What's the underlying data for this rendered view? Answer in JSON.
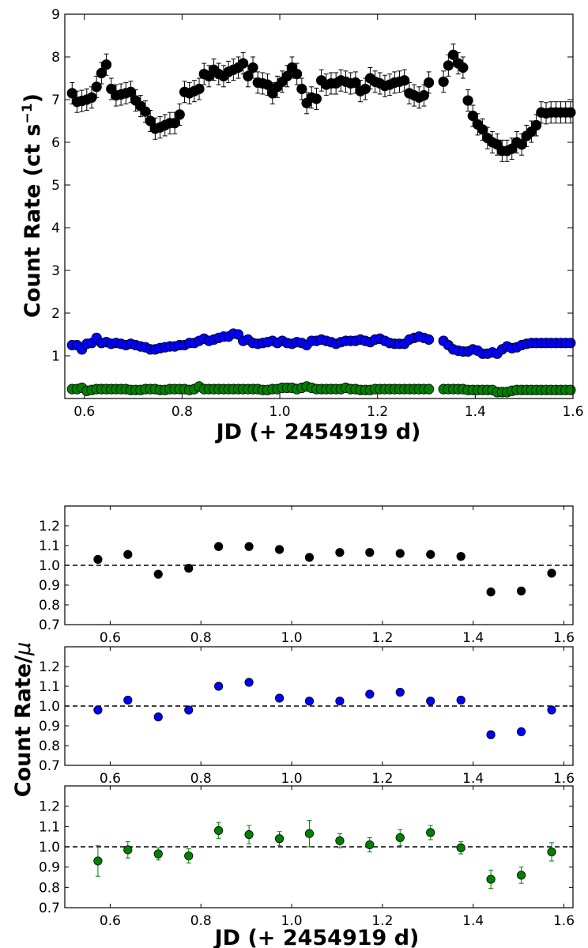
{
  "chart_data": [
    {
      "type": "scatter",
      "title": "",
      "xlabel": "JD (+ 2454919 d)",
      "ylabel": "Count Rate (ct s",
      "ylabel_sup": "−1",
      "ylabel_close": ")",
      "xlim": [
        0.56,
        1.6
      ],
      "ylim": [
        0,
        9
      ],
      "xticks": [
        "0.6",
        "0.8",
        "1.0",
        "1.2",
        "1.4",
        "1.6"
      ],
      "xtick_values": [
        0.6,
        0.8,
        1.0,
        1.2,
        1.4,
        1.6
      ],
      "yticks": [
        "1",
        "2",
        "3",
        "4",
        "5",
        "6",
        "7",
        "8",
        "9"
      ],
      "ytick_values": [
        1,
        2,
        3,
        4,
        5,
        6,
        7,
        8,
        9
      ],
      "series": [
        {
          "color": "#000000",
          "err": 0.25,
          "x": [
            0.575,
            0.585,
            0.595,
            0.605,
            0.615,
            0.625,
            0.635,
            0.645,
            0.655,
            0.665,
            0.675,
            0.685,
            0.695,
            0.705,
            0.715,
            0.725,
            0.735,
            0.745,
            0.755,
            0.765,
            0.775,
            0.785,
            0.795,
            0.805,
            0.815,
            0.825,
            0.835,
            0.845,
            0.855,
            0.865,
            0.875,
            0.885,
            0.895,
            0.905,
            0.915,
            0.925,
            0.935,
            0.945,
            0.955,
            0.965,
            0.975,
            0.985,
            0.995,
            1.005,
            1.015,
            1.025,
            1.035,
            1.045,
            1.055,
            1.065,
            1.075,
            1.085,
            1.095,
            1.105,
            1.115,
            1.125,
            1.135,
            1.145,
            1.155,
            1.165,
            1.175,
            1.185,
            1.195,
            1.205,
            1.215,
            1.225,
            1.235,
            1.245,
            1.255,
            1.265,
            1.275,
            1.285,
            1.295,
            1.305,
            1.335,
            1.345,
            1.355,
            1.365,
            1.375,
            1.385,
            1.395,
            1.405,
            1.415,
            1.425,
            1.435,
            1.445,
            1.455,
            1.465,
            1.475,
            1.485,
            1.495,
            1.505,
            1.515,
            1.525,
            1.535,
            1.545,
            1.555,
            1.565,
            1.575,
            1.585,
            1.595
          ],
          "y": [
            7.15,
            6.95,
            6.97,
            7.0,
            7.05,
            7.3,
            7.62,
            7.82,
            7.25,
            7.1,
            7.12,
            7.15,
            7.18,
            6.98,
            6.85,
            6.72,
            6.5,
            6.32,
            6.35,
            6.4,
            6.45,
            6.45,
            6.65,
            7.18,
            7.15,
            7.2,
            7.25,
            7.6,
            7.55,
            7.7,
            7.6,
            7.55,
            7.65,
            7.7,
            7.75,
            7.85,
            7.55,
            7.75,
            7.4,
            7.38,
            7.35,
            7.15,
            7.3,
            7.42,
            7.55,
            7.75,
            7.6,
            7.25,
            6.92,
            7.05,
            7.02,
            7.45,
            7.35,
            7.38,
            7.38,
            7.45,
            7.42,
            7.38,
            7.4,
            7.2,
            7.25,
            7.5,
            7.42,
            7.38,
            7.32,
            7.35,
            7.4,
            7.42,
            7.45,
            7.15,
            7.1,
            7.05,
            7.1,
            7.4,
            7.42,
            7.8,
            8.05,
            7.85,
            7.75,
            6.98,
            6.62,
            6.42,
            6.3,
            6.1,
            6.0,
            5.95,
            5.8,
            5.8,
            5.85,
            6.0,
            5.95,
            6.15,
            6.25,
            6.4,
            6.7,
            6.68,
            6.7,
            6.7,
            6.7,
            6.7,
            6.7
          ]
        },
        {
          "color": "#0000ff",
          "err": 0.1,
          "x": [
            0.575,
            0.585,
            0.595,
            0.605,
            0.615,
            0.625,
            0.635,
            0.645,
            0.655,
            0.665,
            0.675,
            0.685,
            0.695,
            0.705,
            0.715,
            0.725,
            0.735,
            0.745,
            0.755,
            0.765,
            0.775,
            0.785,
            0.795,
            0.805,
            0.815,
            0.825,
            0.835,
            0.845,
            0.855,
            0.865,
            0.875,
            0.885,
            0.895,
            0.905,
            0.915,
            0.925,
            0.935,
            0.945,
            0.955,
            0.965,
            0.975,
            0.985,
            0.995,
            1.005,
            1.015,
            1.025,
            1.035,
            1.045,
            1.055,
            1.065,
            1.075,
            1.085,
            1.095,
            1.105,
            1.115,
            1.125,
            1.135,
            1.145,
            1.155,
            1.165,
            1.175,
            1.185,
            1.195,
            1.205,
            1.215,
            1.225,
            1.235,
            1.245,
            1.255,
            1.265,
            1.275,
            1.285,
            1.295,
            1.305,
            1.335,
            1.345,
            1.355,
            1.365,
            1.375,
            1.385,
            1.395,
            1.405,
            1.415,
            1.425,
            1.435,
            1.445,
            1.455,
            1.465,
            1.475,
            1.485,
            1.495,
            1.505,
            1.515,
            1.525,
            1.535,
            1.545,
            1.555,
            1.565,
            1.575,
            1.585,
            1.595
          ],
          "y": [
            1.25,
            1.25,
            1.15,
            1.28,
            1.3,
            1.42,
            1.3,
            1.32,
            1.28,
            1.3,
            1.28,
            1.25,
            1.28,
            1.25,
            1.22,
            1.2,
            1.15,
            1.15,
            1.18,
            1.2,
            1.22,
            1.22,
            1.25,
            1.25,
            1.3,
            1.3,
            1.35,
            1.4,
            1.35,
            1.38,
            1.42,
            1.45,
            1.45,
            1.52,
            1.5,
            1.35,
            1.38,
            1.3,
            1.28,
            1.3,
            1.32,
            1.35,
            1.3,
            1.35,
            1.3,
            1.28,
            1.32,
            1.3,
            1.25,
            1.35,
            1.35,
            1.38,
            1.35,
            1.32,
            1.28,
            1.32,
            1.35,
            1.35,
            1.35,
            1.38,
            1.35,
            1.32,
            1.38,
            1.4,
            1.35,
            1.3,
            1.28,
            1.28,
            1.28,
            1.38,
            1.42,
            1.45,
            1.42,
            1.38,
            1.35,
            1.25,
            1.15,
            1.12,
            1.1,
            1.1,
            1.15,
            1.12,
            1.05,
            1.05,
            1.08,
            1.05,
            1.15,
            1.22,
            1.18,
            1.2,
            1.25,
            1.28,
            1.3,
            1.3,
            1.3,
            1.3,
            1.3,
            1.3,
            1.3,
            1.3,
            1.3
          ]
        },
        {
          "color": "#008000",
          "err": 0.03,
          "x": [
            0.575,
            0.585,
            0.595,
            0.605,
            0.615,
            0.625,
            0.635,
            0.645,
            0.655,
            0.665,
            0.675,
            0.685,
            0.695,
            0.705,
            0.715,
            0.725,
            0.735,
            0.745,
            0.755,
            0.765,
            0.775,
            0.785,
            0.795,
            0.805,
            0.815,
            0.825,
            0.835,
            0.845,
            0.855,
            0.865,
            0.875,
            0.885,
            0.895,
            0.905,
            0.915,
            0.925,
            0.935,
            0.945,
            0.955,
            0.965,
            0.975,
            0.985,
            0.995,
            1.005,
            1.015,
            1.025,
            1.035,
            1.045,
            1.055,
            1.065,
            1.075,
            1.085,
            1.095,
            1.105,
            1.115,
            1.125,
            1.135,
            1.145,
            1.155,
            1.165,
            1.175,
            1.185,
            1.195,
            1.205,
            1.215,
            1.225,
            1.235,
            1.245,
            1.255,
            1.265,
            1.275,
            1.285,
            1.295,
            1.305,
            1.335,
            1.345,
            1.355,
            1.365,
            1.375,
            1.385,
            1.395,
            1.405,
            1.415,
            1.425,
            1.435,
            1.445,
            1.455,
            1.465,
            1.475,
            1.485,
            1.495,
            1.505,
            1.515,
            1.525,
            1.535,
            1.545,
            1.555,
            1.565,
            1.575,
            1.585,
            1.595
          ],
          "y": [
            0.22,
            0.22,
            0.25,
            0.18,
            0.2,
            0.22,
            0.22,
            0.22,
            0.22,
            0.22,
            0.22,
            0.22,
            0.2,
            0.2,
            0.2,
            0.22,
            0.22,
            0.22,
            0.2,
            0.2,
            0.22,
            0.22,
            0.22,
            0.22,
            0.2,
            0.22,
            0.28,
            0.22,
            0.22,
            0.22,
            0.22,
            0.22,
            0.22,
            0.22,
            0.22,
            0.22,
            0.22,
            0.22,
            0.22,
            0.2,
            0.2,
            0.22,
            0.22,
            0.25,
            0.25,
            0.25,
            0.22,
            0.25,
            0.28,
            0.25,
            0.22,
            0.22,
            0.22,
            0.22,
            0.22,
            0.22,
            0.25,
            0.22,
            0.22,
            0.2,
            0.2,
            0.2,
            0.22,
            0.22,
            0.22,
            0.22,
            0.22,
            0.22,
            0.22,
            0.22,
            0.22,
            0.22,
            0.22,
            0.22,
            0.22,
            0.22,
            0.22,
            0.22,
            0.22,
            0.2,
            0.2,
            0.2,
            0.2,
            0.2,
            0.2,
            0.15,
            0.15,
            0.15,
            0.18,
            0.2,
            0.2,
            0.2,
            0.2,
            0.2,
            0.2,
            0.2,
            0.2,
            0.2,
            0.2,
            0.2,
            0.2
          ]
        }
      ]
    },
    {
      "type": "scatter",
      "title": "",
      "xlabel": "",
      "ylabel": "",
      "xlim": [
        0.5,
        1.62
      ],
      "ylim": [
        0.7,
        1.3
      ],
      "xticks": [
        "0.6",
        "0.8",
        "1.0",
        "1.2",
        "1.4",
        "1.6"
      ],
      "xtick_values": [
        0.6,
        0.8,
        1.0,
        1.2,
        1.4,
        1.6
      ],
      "yticks": [
        "0.7",
        "0.8",
        "0.9",
        "1.0",
        "1.1",
        "1.2"
      ],
      "ytick_values": [
        0.7,
        0.8,
        0.9,
        1.0,
        1.1,
        1.2
      ],
      "reference_line": 1.0,
      "series": [
        {
          "color": "#000000",
          "x": [
            0.573,
            0.639,
            0.706,
            0.773,
            0.839,
            0.906,
            0.973,
            1.039,
            1.106,
            1.172,
            1.239,
            1.306,
            1.373,
            1.439,
            1.506,
            1.573
          ],
          "y": [
            1.03,
            1.055,
            0.955,
            0.985,
            1.095,
            1.095,
            1.08,
            1.04,
            1.065,
            1.065,
            1.06,
            1.055,
            1.045,
            0.865,
            0.87,
            0.96
          ],
          "err": [
            0,
            0,
            0,
            0,
            0,
            0,
            0,
            0,
            0,
            0,
            0,
            0,
            0,
            0,
            0,
            0
          ]
        }
      ]
    },
    {
      "type": "scatter",
      "title": "",
      "xlabel": "",
      "ylabel": "Count Rate/",
      "ylabel_symbol": "μ",
      "xlim": [
        0.5,
        1.62
      ],
      "ylim": [
        0.7,
        1.3
      ],
      "xticks": [
        "0.6",
        "0.8",
        "1.0",
        "1.2",
        "1.4",
        "1.6"
      ],
      "xtick_values": [
        0.6,
        0.8,
        1.0,
        1.2,
        1.4,
        1.6
      ],
      "yticks": [
        "0.7",
        "0.8",
        "0.9",
        "1.0",
        "1.1",
        "1.2"
      ],
      "ytick_values": [
        0.7,
        0.8,
        0.9,
        1.0,
        1.1,
        1.2
      ],
      "reference_line": 1.0,
      "series": [
        {
          "color": "#0000ff",
          "x": [
            0.573,
            0.639,
            0.706,
            0.773,
            0.839,
            0.906,
            0.973,
            1.039,
            1.106,
            1.172,
            1.239,
            1.306,
            1.373,
            1.439,
            1.506,
            1.573
          ],
          "y": [
            0.98,
            1.03,
            0.945,
            0.98,
            1.1,
            1.12,
            1.04,
            1.025,
            1.025,
            1.06,
            1.07,
            1.025,
            1.03,
            0.855,
            0.87,
            0.98
          ],
          "err": [
            0.01,
            0.01,
            0.01,
            0.01,
            0.01,
            0.01,
            0.01,
            0.01,
            0.01,
            0.01,
            0.01,
            0.01,
            0.01,
            0.01,
            0.01,
            0.01
          ]
        }
      ]
    },
    {
      "type": "scatter",
      "title": "",
      "xlabel": "JD (+ 2454919 d)",
      "ylabel": "",
      "xlim": [
        0.5,
        1.62
      ],
      "ylim": [
        0.7,
        1.3
      ],
      "xticks": [
        "0.6",
        "0.8",
        "1.0",
        "1.2",
        "1.4",
        "1.6"
      ],
      "xtick_values": [
        0.6,
        0.8,
        1.0,
        1.2,
        1.4,
        1.6
      ],
      "yticks": [
        "0.7",
        "0.8",
        "0.9",
        "1.0",
        "1.1",
        "1.2"
      ],
      "ytick_values": [
        0.7,
        0.8,
        0.9,
        1.0,
        1.1,
        1.2
      ],
      "reference_line": 1.0,
      "series": [
        {
          "color": "#008000",
          "x": [
            0.573,
            0.639,
            0.706,
            0.773,
            0.839,
            0.906,
            0.973,
            1.039,
            1.106,
            1.172,
            1.239,
            1.306,
            1.373,
            1.439,
            1.506,
            1.573
          ],
          "y": [
            0.93,
            0.985,
            0.965,
            0.955,
            1.08,
            1.06,
            1.04,
            1.065,
            1.03,
            1.01,
            1.045,
            1.07,
            0.995,
            0.84,
            0.86,
            0.975
          ],
          "err": [
            0.075,
            0.04,
            0.03,
            0.035,
            0.04,
            0.045,
            0.035,
            0.065,
            0.035,
            0.035,
            0.04,
            0.035,
            0.03,
            0.045,
            0.04,
            0.045
          ]
        }
      ]
    }
  ]
}
